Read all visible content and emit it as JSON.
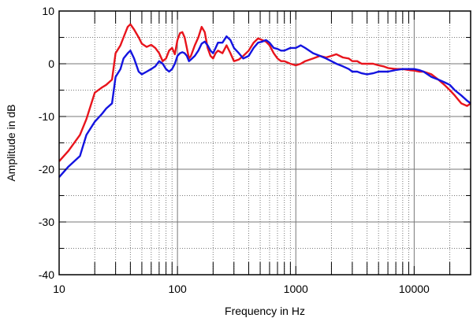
{
  "chart_data": {
    "type": "line",
    "title": "",
    "xlabel": "Frequency in Hz",
    "ylabel": "Amplitude in dB",
    "x_scale": "log",
    "xlim": [
      10,
      30000
    ],
    "ylim": [
      -40,
      10
    ],
    "grid": true,
    "legend": "none",
    "x_ticks": [
      10,
      100,
      1000,
      10000
    ],
    "x_tick_labels": [
      "10",
      "100",
      "1000",
      "10000"
    ],
    "y_ticks": [
      10,
      0,
      -10,
      -20,
      -30,
      -40
    ],
    "y_tick_labels": [
      "10",
      "0",
      "-10",
      "-20",
      "-30",
      "-40"
    ],
    "series": [
      {
        "color": "#e8141c",
        "x": [
          10,
          12,
          15,
          17,
          20,
          23,
          25,
          28,
          30,
          33,
          35,
          38,
          40,
          43,
          47,
          50,
          55,
          60,
          65,
          70,
          75,
          80,
          85,
          90,
          95,
          100,
          105,
          110,
          115,
          120,
          125,
          130,
          140,
          150,
          160,
          170,
          180,
          190,
          200,
          210,
          220,
          240,
          260,
          280,
          300,
          330,
          360,
          400,
          440,
          480,
          520,
          560,
          600,
          650,
          700,
          750,
          800,
          900,
          1000,
          1100,
          1200,
          1400,
          1600,
          1800,
          2000,
          2200,
          2500,
          2800,
          3000,
          3300,
          3600,
          4000,
          4500,
          5000,
          5500,
          6000,
          7000,
          8000,
          9000,
          10000,
          11000,
          12000,
          14000,
          16000,
          18000,
          20000,
          22000,
          25000,
          28000,
          30000
        ],
        "values": [
          -18.5,
          -16.5,
          -13.5,
          -10.5,
          -5.5,
          -4.5,
          -4.0,
          -3.0,
          2.0,
          3.5,
          5.0,
          7.0,
          7.5,
          6.5,
          5.0,
          3.8,
          3.2,
          3.6,
          3.0,
          2.0,
          0.5,
          1.0,
          2.5,
          3.0,
          1.8,
          4.5,
          5.8,
          6.0,
          5.0,
          3.0,
          1.0,
          1.5,
          3.5,
          5.0,
          7.0,
          6.0,
          3.0,
          1.5,
          1.0,
          2.0,
          2.5,
          2.0,
          3.5,
          2.0,
          0.5,
          0.8,
          1.5,
          2.5,
          4.0,
          4.8,
          4.5,
          4.2,
          3.5,
          2.0,
          1.0,
          0.5,
          0.5,
          0.0,
          -0.3,
          0.0,
          0.5,
          1.0,
          1.5,
          1.2,
          1.5,
          1.8,
          1.2,
          1.0,
          0.5,
          0.5,
          0.0,
          0.0,
          0.0,
          -0.3,
          -0.5,
          -0.8,
          -1.0,
          -1.0,
          -1.2,
          -1.3,
          -1.5,
          -1.5,
          -2.0,
          -3.0,
          -4.0,
          -5.0,
          -6.0,
          -7.5,
          -8.0,
          -7.5
        ]
      },
      {
        "color": "#1414e0",
        "x": [
          10,
          12,
          15,
          17,
          20,
          23,
          25,
          28,
          30,
          33,
          35,
          38,
          40,
          43,
          47,
          50,
          55,
          60,
          65,
          70,
          75,
          80,
          85,
          90,
          95,
          100,
          105,
          110,
          115,
          120,
          125,
          130,
          140,
          150,
          160,
          170,
          180,
          190,
          200,
          210,
          220,
          240,
          260,
          280,
          300,
          330,
          360,
          400,
          440,
          480,
          520,
          560,
          600,
          650,
          700,
          750,
          800,
          900,
          1000,
          1100,
          1200,
          1400,
          1600,
          1800,
          2000,
          2200,
          2500,
          2800,
          3000,
          3300,
          3600,
          4000,
          4500,
          5000,
          5500,
          6000,
          7000,
          8000,
          9000,
          10000,
          11000,
          12000,
          14000,
          16000,
          18000,
          20000,
          22000,
          25000,
          28000,
          30000
        ],
        "values": [
          -21.5,
          -19.5,
          -17.5,
          -13.5,
          -11.0,
          -9.5,
          -8.5,
          -7.5,
          -2.5,
          -1.0,
          1.0,
          2.0,
          2.5,
          1.0,
          -1.5,
          -2.0,
          -1.5,
          -1.0,
          -0.5,
          0.5,
          0.0,
          -1.0,
          -1.5,
          -1.0,
          0.0,
          1.5,
          2.0,
          2.2,
          2.0,
          1.5,
          0.5,
          0.8,
          1.5,
          2.5,
          3.8,
          4.2,
          3.5,
          2.5,
          2.0,
          3.0,
          4.0,
          4.0,
          5.2,
          4.5,
          3.0,
          2.0,
          1.0,
          1.5,
          3.0,
          4.0,
          4.2,
          4.5,
          4.0,
          3.0,
          2.8,
          2.5,
          2.5,
          3.0,
          3.0,
          3.5,
          3.0,
          2.0,
          1.5,
          1.0,
          0.5,
          0.0,
          -0.5,
          -1.0,
          -1.5,
          -1.5,
          -1.8,
          -2.0,
          -1.8,
          -1.5,
          -1.5,
          -1.5,
          -1.2,
          -1.0,
          -1.0,
          -1.0,
          -1.2,
          -1.5,
          -2.5,
          -3.0,
          -3.5,
          -4.0,
          -5.0,
          -6.0,
          -7.0,
          -7.5
        ]
      }
    ]
  }
}
